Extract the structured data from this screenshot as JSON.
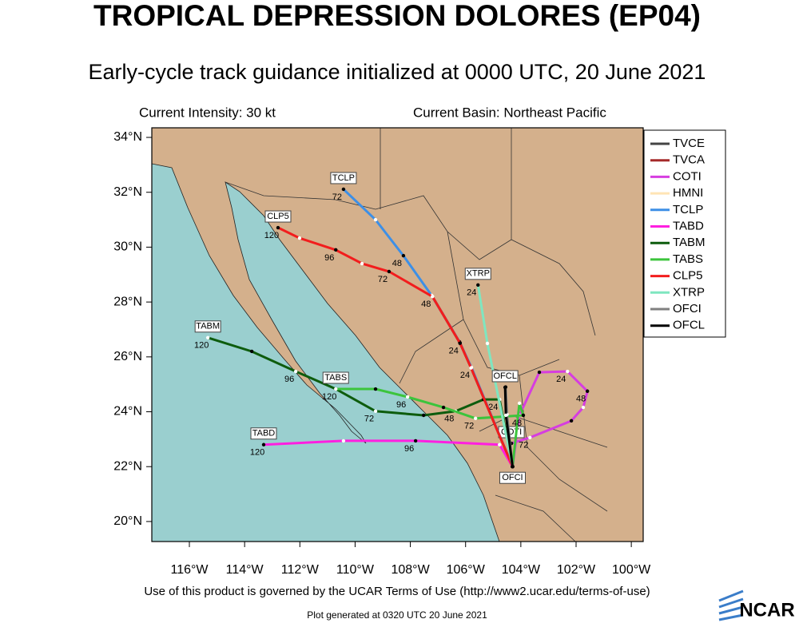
{
  "chart_data": {
    "type": "track-map",
    "title": "TROPICAL DEPRESSION DOLORES (EP04)",
    "subtitle": "Early-cycle track guidance initialized at 0000 UTC, 20 June 2021",
    "intensity": "Current Intensity: 30 kt",
    "basin": "Current Basin: Northeast Pacific",
    "xlim": [
      -117.36,
      -99.57
    ],
    "ylim": [
      19.27,
      34.35
    ],
    "xticks": [
      {
        "value": -116,
        "label": "116°W"
      },
      {
        "value": -114,
        "label": "114°W"
      },
      {
        "value": -112,
        "label": "112°W"
      },
      {
        "value": -110,
        "label": "110°W"
      },
      {
        "value": -108,
        "label": "108°W"
      },
      {
        "value": -106,
        "label": "106°W"
      },
      {
        "value": -104,
        "label": "104°W"
      },
      {
        "value": -102,
        "label": "102°W"
      },
      {
        "value": -100,
        "label": "100°W"
      }
    ],
    "yticks": [
      {
        "value": 20,
        "label": "20°N"
      },
      {
        "value": 22,
        "label": "22°N"
      },
      {
        "value": 24,
        "label": "24°N"
      },
      {
        "value": 26,
        "label": "26°N"
      },
      {
        "value": 28,
        "label": "28°N"
      },
      {
        "value": 30,
        "label": "30°N"
      },
      {
        "value": 32,
        "label": "32°N"
      },
      {
        "value": 34,
        "label": "34°N"
      }
    ],
    "series": [
      {
        "name": "TVCE",
        "color": "#444444",
        "x": [
          -104.3,
          -105.8,
          -106.2,
          -107.2
        ],
        "values": [
          22.0,
          25.6,
          26.5,
          28.2
        ]
      },
      {
        "name": "TVCA",
        "color": "#a52a2a",
        "x": [
          -104.3,
          -105.8,
          -106.2,
          -107.2
        ],
        "values": [
          22.0,
          25.6,
          26.5,
          28.2
        ]
      },
      {
        "name": "COTI",
        "color": "#d63de0",
        "x": [
          -104.3,
          -104.05,
          -103.33,
          -102.31,
          -101.59,
          -101.74,
          -102.17,
          -103.67,
          -104.34
        ],
        "values": [
          22.0,
          23.87,
          25.44,
          25.47,
          24.75,
          24.16,
          23.67,
          23.06,
          22.85
        ],
        "point_labels": [
          null,
          null,
          null,
          "24",
          "48",
          null,
          null,
          "72",
          null
        ]
      },
      {
        "name": "HMNI",
        "color": "#ffe4b5",
        "x": [],
        "values": []
      },
      {
        "name": "TCLP",
        "color": "#3d8fe6",
        "x": [
          -104.3,
          -105.79,
          -106.22,
          -107.23,
          -108.25,
          -109.26,
          -110.42
        ],
        "values": [
          22.0,
          25.62,
          26.55,
          28.24,
          29.69,
          31.0,
          32.11
        ],
        "point_labels": [
          null,
          "24",
          null,
          null,
          "48",
          null,
          "72"
        ]
      },
      {
        "name": "TABD",
        "color": "#ff1fe0",
        "x": [
          -104.3,
          -104.77,
          -107.81,
          -110.42,
          -113.31
        ],
        "values": [
          22.0,
          22.8,
          22.94,
          22.94,
          22.8
        ],
        "point_labels": [
          null,
          null,
          "96",
          null,
          "120"
        ]
      },
      {
        "name": "TABM",
        "color": "#0d5c0d",
        "x": [
          -104.3,
          -104.77,
          -105.35,
          -106.36,
          -107.52,
          -109.26,
          -110.7,
          -112.15,
          -113.74,
          -115.33
        ],
        "values": [
          22.0,
          24.45,
          24.45,
          24.02,
          23.87,
          24.02,
          24.83,
          25.47,
          26.2,
          26.7
        ],
        "point_labels": [
          null,
          "24",
          null,
          "48",
          null,
          "72",
          null,
          "96",
          null,
          "120"
        ]
      },
      {
        "name": "TABS",
        "color": "#3cc43c",
        "x": [
          -104.3,
          -104.05,
          -103.91,
          -105.64,
          -106.8,
          -108.1,
          -109.26,
          -110.7
        ],
        "values": [
          22.0,
          24.31,
          23.87,
          23.76,
          24.16,
          24.54,
          24.83,
          24.83
        ],
        "point_labels": [
          null,
          null,
          "48",
          "72",
          null,
          "96",
          null,
          "120"
        ]
      },
      {
        "name": "CLP5",
        "color": "#f21d1d",
        "x": [
          -104.3,
          -105.8,
          -106.2,
          -107.2,
          -108.77,
          -109.75,
          -110.7,
          -112.01,
          -112.79
        ],
        "values": [
          22.0,
          25.6,
          26.5,
          28.2,
          29.11,
          29.4,
          29.9,
          30.33,
          30.71
        ],
        "point_labels": [
          null,
          null,
          "24",
          "48",
          "72",
          null,
          "96",
          null,
          "120"
        ]
      },
      {
        "name": "XTRP",
        "color": "#7fe6c0",
        "x": [
          -104.3,
          -105.21,
          -105.55
        ],
        "values": [
          22.0,
          26.49,
          28.62
        ],
        "point_labels": [
          null,
          null,
          "24"
        ]
      },
      {
        "name": "OFCI",
        "color": "#808080",
        "x": [
          -104.3,
          -104.5,
          -104.55
        ],
        "values": [
          22.0,
          23.9,
          24.9
        ]
      },
      {
        "name": "OFCL",
        "color": "#000000",
        "x": [
          -104.3,
          -104.54,
          -104.57
        ],
        "values": [
          22.0,
          23.87,
          24.89
        ]
      }
    ],
    "footer": "Use of this product is governed by the UCAR Terms of Use (http://www2.ucar.edu/terms-of-use)",
    "generated": "Plot generated at 0320 UTC   20 June 2021",
    "logo": "NCAR"
  }
}
